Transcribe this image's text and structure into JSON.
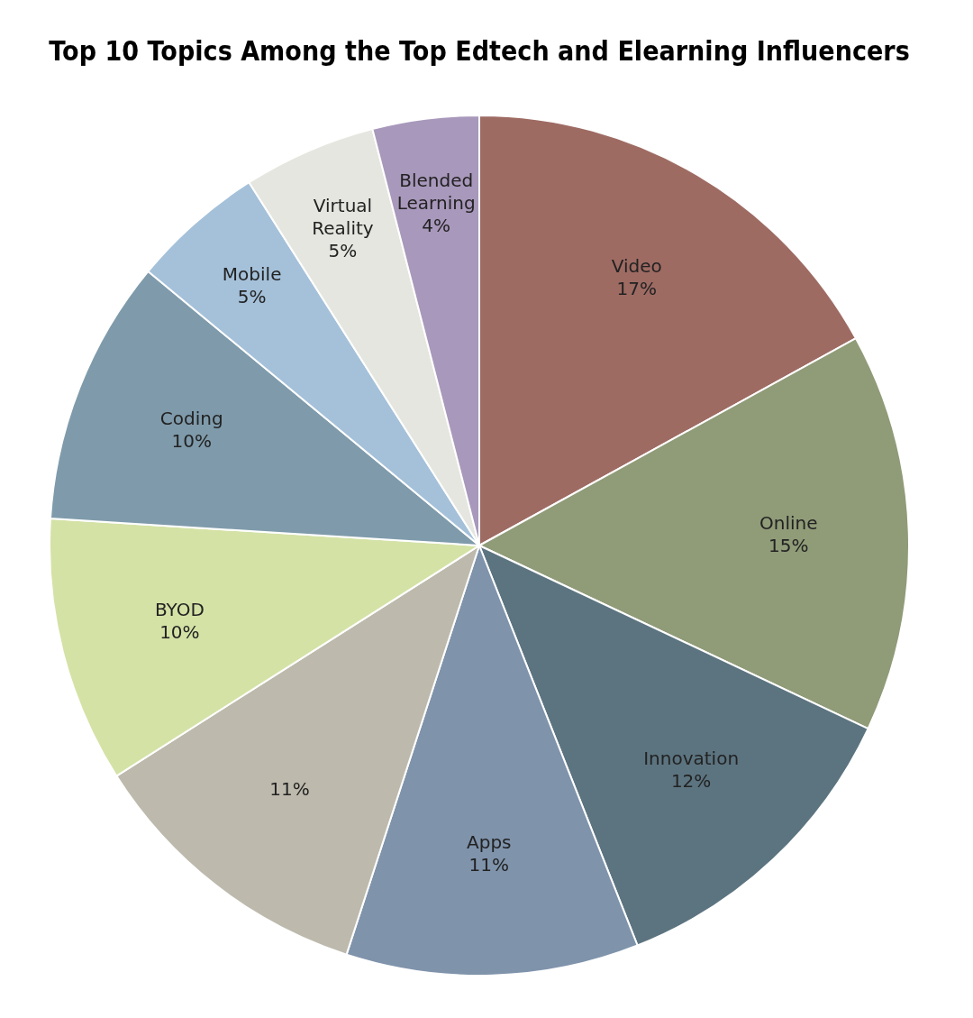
{
  "chart_data": {
    "type": "pie",
    "title": "Top 10 Topics Among the Top Edtech and Elearning Influencers",
    "categories": [
      "Video",
      "Online",
      "Innovation",
      "Apps",
      null,
      "BYOD",
      "Coding",
      "Mobile",
      "Virtual Reality",
      "Blended Learning"
    ],
    "values": [
      17,
      15,
      12,
      11,
      11,
      10,
      10,
      5,
      5,
      4
    ],
    "value_labels": [
      "17%",
      "15%",
      "12%",
      "11%",
      "11%",
      "10%",
      "10%",
      "5%",
      "5%",
      "4%"
    ],
    "colors": [
      "#9e6b63",
      "#909b78",
      "#5c7480",
      "#7f93ab",
      "#bdbaad",
      "#d4e2a6",
      "#7f9bab",
      "#a5c1da",
      "#e6e6e0",
      "#a898bb"
    ],
    "legend": false
  }
}
